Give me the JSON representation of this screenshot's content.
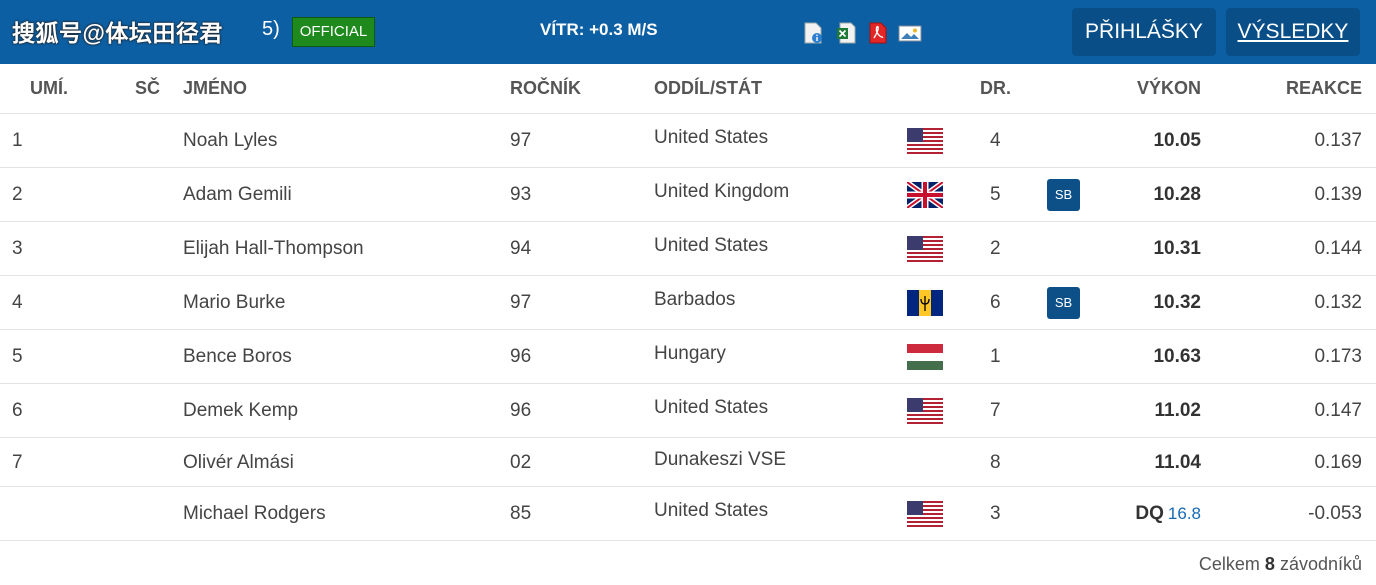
{
  "header": {
    "title_fragment": "5)",
    "watermark": "搜狐号@体坛田径君",
    "official_badge": "OFFICIAL",
    "wind": "VÍTR: +0.3 M/S",
    "file_icons": [
      "pdf-info-icon",
      "excel-icon",
      "pdf-icon",
      "image-icon"
    ],
    "nav": {
      "entries_label": "PŘIHLÁŠKY",
      "results_label": "VÝSLEDKY"
    },
    "colors": {
      "bar": "#0d5fa3",
      "button": "#0a4e87",
      "official": "#1e8a1e",
      "sb_badge": "#0d4f87"
    }
  },
  "table": {
    "columns": {
      "rank": "UMÍ.",
      "bib": "SČ",
      "name": "JMÉNO",
      "year": "ROČNÍK",
      "club": "ODDÍL/STÁT",
      "lane": "DR.",
      "perf": "VÝKON",
      "reaction": "REAKCE"
    },
    "rows": [
      {
        "rank": "1",
        "name": "Noah Lyles",
        "year": "97",
        "club": "United States",
        "flag": "usa",
        "lane": "4",
        "badge": "",
        "perf": "10.05",
        "perf_note": "",
        "reaction": "0.137"
      },
      {
        "rank": "2",
        "name": "Adam Gemili",
        "year": "93",
        "club": "United Kingdom",
        "flag": "gbr",
        "lane": "5",
        "badge": "SB",
        "perf": "10.28",
        "perf_note": "",
        "reaction": "0.139"
      },
      {
        "rank": "3",
        "name": "Elijah Hall-Thompson",
        "year": "94",
        "club": "United States",
        "flag": "usa",
        "lane": "2",
        "badge": "",
        "perf": "10.31",
        "perf_note": "",
        "reaction": "0.144"
      },
      {
        "rank": "4",
        "name": "Mario Burke",
        "year": "97",
        "club": "Barbados",
        "flag": "brb",
        "lane": "6",
        "badge": "SB",
        "perf": "10.32",
        "perf_note": "",
        "reaction": "0.132"
      },
      {
        "rank": "5",
        "name": "Bence Boros",
        "year": "96",
        "club": "Hungary",
        "flag": "hun",
        "lane": "1",
        "badge": "",
        "perf": "10.63",
        "perf_note": "",
        "reaction": "0.173"
      },
      {
        "rank": "6",
        "name": "Demek Kemp",
        "year": "96",
        "club": "United States",
        "flag": "usa",
        "lane": "7",
        "badge": "",
        "perf": "11.02",
        "perf_note": "",
        "reaction": "0.147"
      },
      {
        "rank": "7",
        "name": "Olivér Almási",
        "year": "02",
        "club": "Dunakeszi VSE",
        "flag": "",
        "lane": "8",
        "badge": "",
        "perf": "11.04",
        "perf_note": "",
        "reaction": "0.169"
      },
      {
        "rank": "",
        "name": "Michael Rodgers",
        "year": "85",
        "club": "United States",
        "flag": "usa",
        "lane": "3",
        "badge": "",
        "perf": "DQ",
        "perf_note": "16.8",
        "reaction": "-0.053"
      }
    ]
  },
  "footer": {
    "prefix": "Celkem",
    "count": "8",
    "suffix": "závodníků"
  }
}
